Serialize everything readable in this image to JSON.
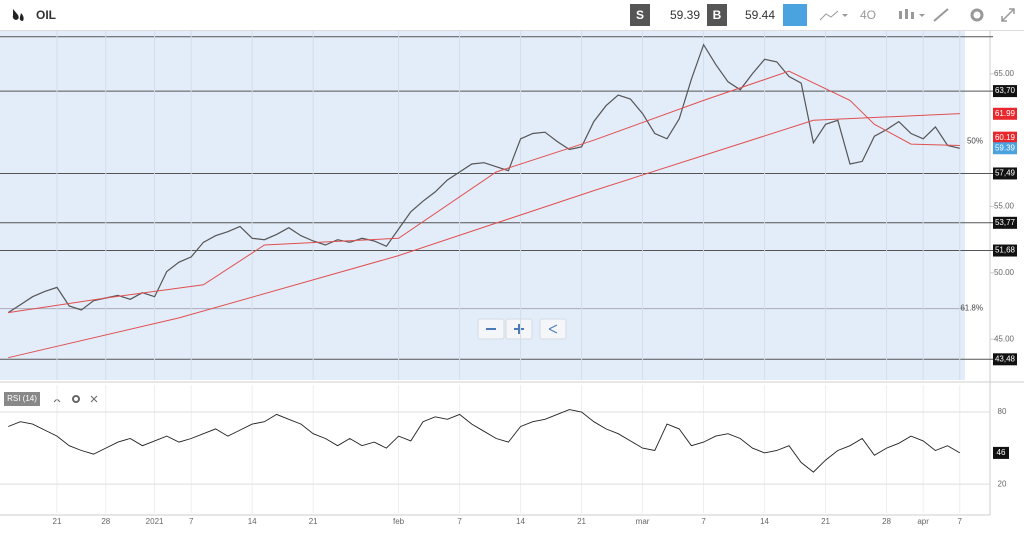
{
  "toolbar": {
    "symbol": "OIL",
    "sell_label": "S",
    "sell_price": "59.39",
    "buy_label": "B",
    "buy_price": "59.44",
    "timeframe": "4O"
  },
  "chart_data": {
    "type": "line",
    "x": [
      -4,
      -3,
      -2,
      -1,
      0,
      1,
      2,
      3,
      4,
      5,
      6,
      7,
      8,
      9,
      10,
      11,
      12,
      13,
      14,
      15,
      16,
      17,
      18,
      19,
      20,
      21,
      22,
      23,
      24,
      25,
      26,
      27,
      28,
      29,
      30,
      31,
      32,
      33,
      34,
      35,
      36,
      37,
      38,
      39,
      40,
      41,
      42,
      43,
      44,
      45,
      46,
      47,
      48,
      49,
      50,
      51,
      52,
      53,
      54,
      55,
      56,
      57,
      58,
      59,
      60,
      61,
      62,
      63,
      64,
      65,
      66,
      67,
      68,
      69,
      70,
      71,
      72,
      73,
      74
    ],
    "series": [
      {
        "name": "price",
        "color": "#555555",
        "values": [
          47.0,
          47.6,
          48.2,
          48.6,
          48.9,
          47.5,
          47.2,
          47.9,
          48.1,
          48.3,
          48.0,
          48.5,
          48.2,
          50.1,
          50.8,
          51.2,
          52.3,
          52.8,
          53.1,
          53.5,
          52.6,
          52.5,
          52.9,
          53.4,
          52.8,
          52.4,
          52.1,
          52.5,
          52.3,
          52.6,
          52.4,
          52.0,
          53.3,
          54.6,
          55.4,
          56.1,
          57.0,
          57.6,
          58.2,
          58.3,
          58.0,
          57.7,
          60.1,
          60.5,
          60.6,
          59.9,
          59.3,
          59.5,
          61.4,
          62.6,
          63.4,
          63.1,
          62.0,
          60.5,
          60.1,
          61.6,
          64.6,
          67.2,
          65.7,
          64.4,
          63.8,
          65.0,
          66.1,
          65.9,
          64.8,
          64.3,
          59.8,
          61.2,
          61.5,
          58.2,
          58.4,
          60.3,
          60.8,
          61.4,
          60.5,
          60.1,
          61.0,
          59.6,
          59.39
        ]
      },
      {
        "name": "ma-fast",
        "color": "#e05050",
        "x": [
          -4,
          4,
          12,
          17,
          28,
          36,
          44,
          53,
          60,
          65,
          67,
          70,
          74
        ],
        "values": [
          47.0,
          48.1,
          49.1,
          52.1,
          52.6,
          57.6,
          60.0,
          63.0,
          65.2,
          63.0,
          61.2,
          59.7,
          59.6
        ]
      },
      {
        "name": "ma-slow",
        "color": "#e05050",
        "x": [
          -4,
          10,
          28,
          44,
          62,
          74
        ],
        "values": [
          43.6,
          46.6,
          51.3,
          56.2,
          61.5,
          62.0
        ]
      }
    ],
    "xlim": [
      -4.67,
      74.43
    ],
    "ylim": [
      41.92,
      68.23
    ],
    "xticks": [
      {
        "value": 0,
        "label": "21"
      },
      {
        "value": 4,
        "label": "28"
      },
      {
        "value": 8,
        "label": "2021"
      },
      {
        "value": 11,
        "label": "7"
      },
      {
        "value": 16,
        "label": "14"
      },
      {
        "value": 21,
        "label": "21"
      },
      {
        "value": 28,
        "label": "feb"
      },
      {
        "value": 33,
        "label": "7"
      },
      {
        "value": 38,
        "label": "14"
      },
      {
        "value": 43,
        "label": "21"
      },
      {
        "value": 48,
        "label": "mar"
      },
      {
        "value": 53,
        "label": "7"
      },
      {
        "value": 58,
        "label": "14"
      },
      {
        "value": 63,
        "label": "21"
      },
      {
        "value": 68,
        "label": "28"
      },
      {
        "value": 71,
        "label": "apr"
      },
      {
        "value": 74,
        "label": "7"
      }
    ],
    "yticks": [
      {
        "value": 65,
        "label": "65.00"
      },
      {
        "value": 55,
        "label": "55.00"
      },
      {
        "value": 50,
        "label": "50.00"
      },
      {
        "value": 45,
        "label": "45.00"
      }
    ],
    "levels": [
      67.8,
      {
        "value": 63.7,
        "label": "63,70"
      },
      {
        "value": 57.49,
        "label": "57,49"
      },
      {
        "value": 53.77,
        "label": "53,77"
      },
      {
        "value": 51.68,
        "label": "51,68"
      },
      {
        "value": 43.48,
        "label": "43,48"
      }
    ],
    "ma_labels": [
      {
        "value": 61.99,
        "label": "61.99"
      },
      {
        "value": 60.19,
        "label": "60.19"
      }
    ],
    "price_label": {
      "value": 59.39,
      "label": "59.39"
    },
    "fib_labels": [
      {
        "value": 59.9,
        "label": "50%"
      },
      {
        "value": 47.3,
        "label": "61.8%"
      }
    ],
    "rsi": {
      "name": "RSI (14)",
      "color": "#222222",
      "ylim": [
        -4,
        102.5
      ],
      "yticks": [
        80,
        20
      ],
      "values": [
        68,
        72,
        70,
        65,
        60,
        52,
        48,
        45,
        50,
        55,
        58,
        52,
        56,
        60,
        55,
        58,
        62,
        66,
        60,
        65,
        70,
        72,
        78,
        74,
        70,
        62,
        58,
        52,
        58,
        52,
        55,
        50,
        60,
        56,
        72,
        76,
        74,
        78,
        70,
        64,
        58,
        55,
        68,
        72,
        74,
        78,
        82,
        80,
        72,
        66,
        62,
        56,
        50,
        48,
        70,
        66,
        52,
        55,
        60,
        62,
        58,
        50,
        46,
        48,
        52,
        38,
        30,
        40,
        48,
        52,
        58,
        44,
        50,
        54,
        60,
        56,
        48,
        52,
        46
      ]
    }
  }
}
